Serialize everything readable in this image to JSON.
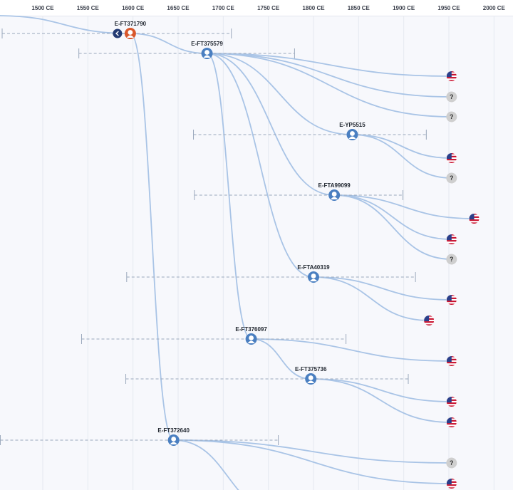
{
  "axis": {
    "unit": "CE",
    "ticks": [
      "1500 CE",
      "1550 CE",
      "1600 CE",
      "1650 CE",
      "1700 CE",
      "1750 CE",
      "1800 CE",
      "1850 CE",
      "1900 CE",
      "1950 CE",
      "2000 CE"
    ]
  },
  "colors": {
    "branch": "#a9c4e6",
    "node": "#4a7fc1",
    "root_node": "#d9572b",
    "collapse_button": "#233a73",
    "unknown": "#cfcfcf",
    "range": "#9aa8bc"
  },
  "nodes": [
    {
      "id": "E-FT371790",
      "label": "E-FT371790",
      "year": 1597,
      "row": 47,
      "kind": "root",
      "parent": null,
      "range": [
        1455,
        1709
      ]
    },
    {
      "id": "E-FT375579",
      "label": "E-FT375579",
      "year": 1682,
      "row": 75,
      "kind": "branch",
      "parent": "E-FT371790",
      "range": [
        1540,
        1779
      ]
    },
    {
      "id": "E-YP5515",
      "label": "E-YP5515",
      "year": 1843,
      "row": 189,
      "kind": "branch",
      "parent": "E-FT375579",
      "range": [
        1667,
        1925
      ]
    },
    {
      "id": "E-FTA99099",
      "label": "E-FTA99099",
      "year": 1823,
      "row": 274,
      "kind": "branch",
      "parent": "E-FT375579",
      "range": [
        1668,
        1899
      ]
    },
    {
      "id": "E-FTA40319",
      "label": "E-FTA40319",
      "year": 1800,
      "row": 389,
      "kind": "branch",
      "parent": "E-FT375579",
      "range": [
        1593,
        1913
      ]
    },
    {
      "id": "E-FT376097",
      "label": "E-FT376097",
      "year": 1731,
      "row": 476,
      "kind": "branch",
      "parent": "E-FT375579",
      "range": [
        1543,
        1836
      ]
    },
    {
      "id": "E-FT375736",
      "label": "E-FT375736",
      "year": 1797,
      "row": 532,
      "kind": "branch",
      "parent": "E-FT376097",
      "range": [
        1592,
        1905
      ]
    },
    {
      "id": "E-FT372640",
      "label": "E-FT372640",
      "year": 1645,
      "row": 618,
      "kind": "branch",
      "parent": "E-FT371790",
      "range": [
        1453,
        1761
      ]
    }
  ],
  "leaves": [
    {
      "parent": "E-FT375579",
      "year": 1953,
      "row": 107,
      "kind": "flag-us"
    },
    {
      "parent": "E-FT375579",
      "year": 1953,
      "row": 136,
      "kind": "unknown"
    },
    {
      "parent": "E-FT375579",
      "year": 1953,
      "row": 164,
      "kind": "unknown"
    },
    {
      "parent": "E-YP5515",
      "year": 1953,
      "row": 222,
      "kind": "flag-us"
    },
    {
      "parent": "E-YP5515",
      "year": 1953,
      "row": 250,
      "kind": "unknown"
    },
    {
      "parent": "E-FTA99099",
      "year": 1978,
      "row": 307,
      "kind": "flag-us"
    },
    {
      "parent": "E-FTA99099",
      "year": 1953,
      "row": 336,
      "kind": "flag-us"
    },
    {
      "parent": "E-FTA99099",
      "year": 1953,
      "row": 364,
      "kind": "unknown"
    },
    {
      "parent": "E-FTA40319",
      "year": 1953,
      "row": 421,
      "kind": "flag-us"
    },
    {
      "parent": "E-FTA40319",
      "year": 1928,
      "row": 450,
      "kind": "flag-us"
    },
    {
      "parent": "E-FT376097",
      "year": 1953,
      "row": 507,
      "kind": "flag-us"
    },
    {
      "parent": "E-FT375736",
      "year": 1953,
      "row": 564,
      "kind": "flag-us"
    },
    {
      "parent": "E-FT375736",
      "year": 1953,
      "row": 593,
      "kind": "flag-us"
    },
    {
      "parent": "E-FT372640",
      "year": 1953,
      "row": 650,
      "kind": "unknown"
    },
    {
      "parent": "E-FT372640",
      "year": 1953,
      "row": 679,
      "kind": "flag-us"
    },
    {
      "parent": "E-FT372640",
      "year": 1765,
      "row": 720,
      "kind": "offscreen"
    }
  ],
  "incoming_branch": {
    "from_year": 1450,
    "from_row": 22
  },
  "unknown_glyph": "?"
}
